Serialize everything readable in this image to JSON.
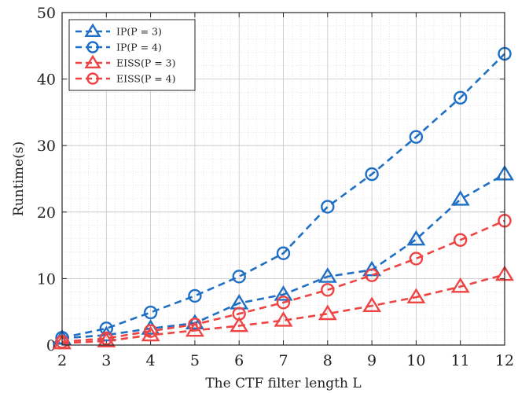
{
  "chart_data": {
    "type": "line",
    "xlabel": "The CTF filter length L",
    "ylabel": "Runtime(s)",
    "x": [
      2,
      3,
      4,
      5,
      6,
      7,
      8,
      9,
      10,
      11,
      12
    ],
    "xlim": [
      2,
      12
    ],
    "ylim": [
      0,
      50
    ],
    "xticks": [
      "2",
      "3",
      "4",
      "5",
      "6",
      "7",
      "8",
      "9",
      "10",
      "11",
      "12"
    ],
    "yticks": [
      "0",
      "10",
      "20",
      "30",
      "40",
      "50"
    ],
    "grid": true,
    "minor_grid": true,
    "legend_position": "top-left",
    "series": [
      {
        "name": "IP(P = 3)",
        "color": "#1f6fc5",
        "marker": "triangle",
        "values": [
          1.0,
          1.5,
          2.5,
          3.3,
          6.3,
          7.6,
          10.3,
          11.3,
          15.9,
          21.9,
          25.7
        ]
      },
      {
        "name": "IP(P = 4)",
        "color": "#1f6fc5",
        "marker": "circle",
        "values": [
          1.1,
          2.5,
          4.9,
          7.4,
          10.3,
          13.8,
          20.8,
          25.7,
          31.3,
          37.2,
          43.8
        ]
      },
      {
        "name": "EISS(P = 3)",
        "color": "#ef4444",
        "marker": "triangle",
        "values": [
          0.3,
          0.6,
          1.5,
          2.2,
          2.9,
          3.7,
          4.7,
          5.9,
          7.2,
          8.8,
          10.6
        ]
      },
      {
        "name": "EISS(P = 4)",
        "color": "#ef4444",
        "marker": "circle",
        "values": [
          0.5,
          1.0,
          2.1,
          3.1,
          4.7,
          6.4,
          8.3,
          10.5,
          13.0,
          15.8,
          18.7
        ]
      }
    ]
  }
}
